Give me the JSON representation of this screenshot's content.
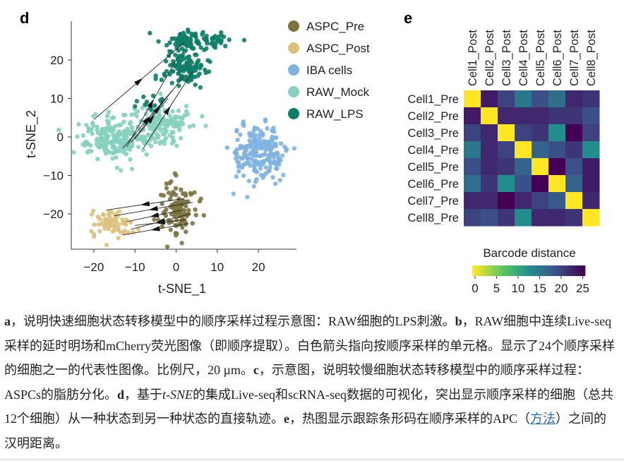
{
  "panel_d": {
    "label": "d"
  },
  "panel_e": {
    "label": "e"
  },
  "chart_data": [
    {
      "type": "scatter",
      "title": "",
      "xlabel": "t-SNE_1",
      "ylabel": "t-SNE_2",
      "xticks": [
        -20,
        -10,
        0,
        10,
        20
      ],
      "yticks": [
        -20,
        -10,
        0,
        10,
        20
      ],
      "xlim": [
        -27,
        28
      ],
      "ylim": [
        -29,
        28
      ],
      "legend_position": "right",
      "series": [
        {
          "name": "ASPC_Pre",
          "color": "#7b7340",
          "clusters": [
            {
              "cx": 0.5,
              "cy": -18,
              "sx": 2.2,
              "sy": 3.8,
              "n": 110
            }
          ]
        },
        {
          "name": "ASPC_Post",
          "color": "#dcc27c",
          "clusters": [
            {
              "cx": -15.5,
              "cy": -22.5,
              "sx": 2.3,
              "sy": 1.8,
              "n": 70
            }
          ]
        },
        {
          "name": "IBA cells",
          "color": "#7fb2e0",
          "clusters": [
            {
              "cx": 20,
              "cy": -4.5,
              "sx": 3.2,
              "sy": 3.6,
              "n": 200
            }
          ]
        },
        {
          "name": "RAW_Mock",
          "color": "#86d0bf",
          "clusters": [
            {
              "cx": -16,
              "cy": 0,
              "sx": 3.6,
              "sy": 2.6,
              "n": 200
            },
            {
              "cx": -4,
              "cy": 3,
              "sx": 3.5,
              "sy": 2.8,
              "n": 150
            }
          ]
        },
        {
          "name": "RAW_LPS",
          "color": "#0c7d66",
          "clusters": [
            {
              "cx": 2,
              "cy": 18,
              "sx": 2.6,
              "sy": 2.6,
              "n": 110
            },
            {
              "cx": 5,
              "cy": 25,
              "sx": 4,
              "sy": 1.4,
              "n": 90
            },
            {
              "cx": -7,
              "cy": 9,
              "sx": 2,
              "sy": 1,
              "n": 12
            }
          ]
        }
      ],
      "arrows": [
        [
          -20,
          4.5,
          2,
          24.5
        ],
        [
          -12,
          -2.5,
          0,
          20
        ],
        [
          -11,
          -1.5,
          2,
          16
        ],
        [
          -10,
          -0.5,
          -2,
          10
        ],
        [
          -13,
          -3,
          -1,
          12
        ],
        [
          -8,
          -3,
          4,
          17
        ],
        [
          2,
          -16,
          -17,
          -19
        ],
        [
          4,
          -17,
          -15,
          -20.5
        ],
        [
          1.5,
          -19,
          -12,
          -22
        ],
        [
          3.5,
          -20,
          -11,
          -24
        ],
        [
          2.5,
          -21.5,
          -10,
          -23
        ],
        [
          3,
          -22.5,
          -13,
          -25.5
        ]
      ]
    },
    {
      "type": "heatmap",
      "title": "",
      "colorbar_label": "Barcode distance",
      "colorbar_ticks": [
        0,
        5,
        10,
        15,
        20,
        25
      ],
      "vmin": 0,
      "vmax": 25,
      "colormap": "viridis_r",
      "columns": [
        "Cell1_Post",
        "Cell2_Post",
        "Cell3_Post",
        "Cell4_Post",
        "Cell5_Post",
        "Cell6_Post",
        "Cell7_Post",
        "Cell8_Post"
      ],
      "rows": [
        "Cell1_Pre",
        "Cell2_Pre",
        "Cell3_Pre",
        "Cell4_Pre",
        "Cell5_Pre",
        "Cell6_Pre",
        "Cell7_Pre",
        "Cell8_Pre"
      ],
      "values": [
        [
          0,
          23,
          20,
          15,
          19,
          16,
          22,
          21
        ],
        [
          23,
          0,
          22,
          22,
          22,
          21,
          21,
          19
        ],
        [
          20,
          22,
          0,
          20,
          21,
          13,
          25,
          20
        ],
        [
          15,
          22,
          20,
          0,
          17,
          19,
          21,
          13
        ],
        [
          19,
          22,
          21,
          17,
          0,
          25,
          19,
          23
        ],
        [
          16,
          21,
          13,
          19,
          25,
          0,
          17,
          23
        ],
        [
          22,
          22,
          25,
          22,
          20,
          18,
          0,
          22
        ],
        [
          20,
          19,
          21,
          13,
          22,
          22,
          21,
          0
        ]
      ]
    }
  ],
  "caption": {
    "a": "a",
    "t1": "，说明快速细胞状态转移模型中的顺序采样过程示意图：RAW细胞的LPS刺激。",
    "b": "b",
    "t2": "，RAW细胞中连续Live-seq采样的延时明场和mCherry荧光图像（即顺序提取）。白色箭头指向按顺序采样的单元格。显示了24个顺序采样的细胞之一的代表性图像。比例尺，20 µm。",
    "c": "c",
    "t3": "，示意图，说明较慢细胞状态转移模型中的顺序采样过程：ASPCs的脂肪分化。",
    "d": "d",
    "t4": "，基于",
    "tsne": "t-SNE",
    "t5": "的集成Live-seq和scRNA-seq数据的可视化，突出显示顺序采样的细胞（总共12个细胞）从一种状态到另一种状态的直接轨迹。",
    "e": "e",
    "t6": "，热图显示跟踪条形码在顺序采样的APC（",
    "link": "方法",
    "t7": "）之间的汉明距离。"
  }
}
